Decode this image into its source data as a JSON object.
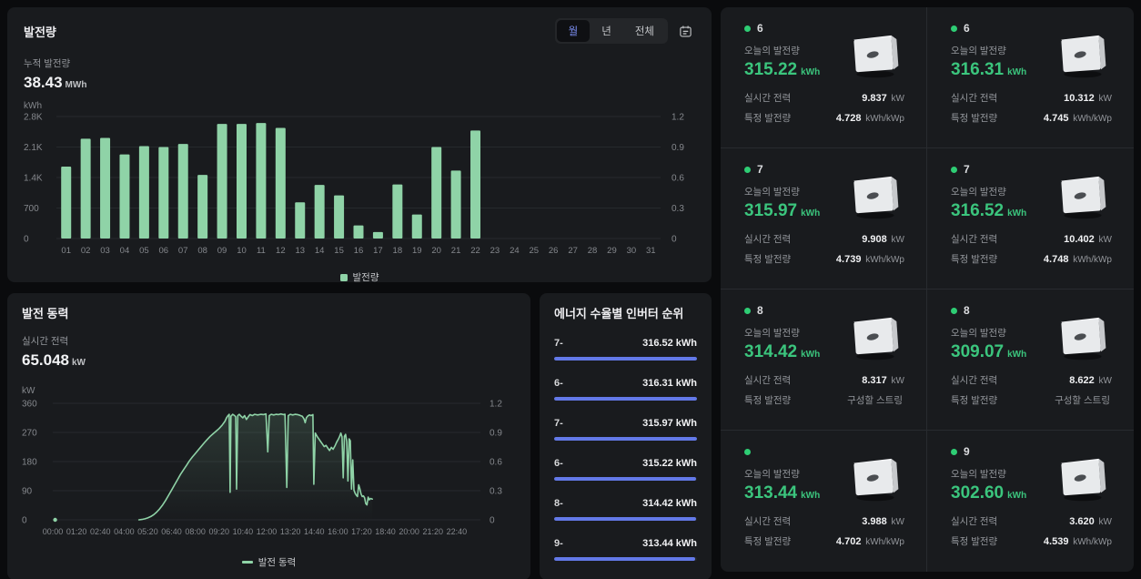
{
  "colors": {
    "background": "#0a0b0d",
    "panel": "#191b1e",
    "grid_line": "#26292d",
    "tick_text": "#85888d",
    "bar_green": "#8fd3a7",
    "value_green": "#3bc57d",
    "accent_blue": "#6379e8",
    "tab_active_blue": "#7e90f6",
    "status_dot_green": "#2ecd74"
  },
  "generation_panel": {
    "title": "발전량",
    "tabs": [
      {
        "label": "월",
        "active": true
      },
      {
        "label": "년",
        "active": false
      },
      {
        "label": "전체",
        "active": false
      }
    ],
    "calendar_icon": "calendar-icon",
    "stat_label": "누적 발전량",
    "stat_value": "38.43",
    "stat_unit": "MWh",
    "axis_unit": "kWh",
    "legend_label": "발전량"
  },
  "power_panel": {
    "title": "발전 동력",
    "stat_label": "실시간 전력",
    "stat_value": "65.048",
    "stat_unit": "kW",
    "axis_unit": "kW",
    "legend_label": "발전 동력"
  },
  "ranking_panel": {
    "title": "에너지 수율별 인버터 순위",
    "items": [
      {
        "name": "7-",
        "value": "316.52 kWh",
        "pct": 100
      },
      {
        "name": "6-",
        "value": "316.31 kWh",
        "pct": 99.9
      },
      {
        "name": "7-",
        "value": "315.97 kWh",
        "pct": 99.8
      },
      {
        "name": "6-",
        "value": "315.22 kWh",
        "pct": 99.6
      },
      {
        "name": "8-",
        "value": "314.42 kWh",
        "pct": 99.3
      },
      {
        "name": "9-",
        "value": "313.44 kWh",
        "pct": 99.0
      }
    ]
  },
  "inverter_cards": {
    "labels": {
      "today": "오늘의 발전량",
      "realtime": "실시간 전력",
      "specific": "특정 발전량"
    },
    "cards": [
      {
        "name": "6",
        "today": "315.22",
        "today_unit": "kWh",
        "realtime": "9.837",
        "realtime_unit": "kW",
        "specific": "4.728",
        "specific_unit": "kWh/kWp"
      },
      {
        "name": "6",
        "today": "316.31",
        "today_unit": "kWh",
        "realtime": "10.312",
        "realtime_unit": "kW",
        "specific": "4.745",
        "specific_unit": "kWh/kWp"
      },
      {
        "name": "7",
        "today": "315.97",
        "today_unit": "kWh",
        "realtime": "9.908",
        "realtime_unit": "kW",
        "specific": "4.739",
        "specific_unit": "kWh/kWp"
      },
      {
        "name": "7",
        "today": "316.52",
        "today_unit": "kWh",
        "realtime": "10.402",
        "realtime_unit": "kW",
        "specific": "4.748",
        "specific_unit": "kWh/kWp"
      },
      {
        "name": "8",
        "today": "314.42",
        "today_unit": "kWh",
        "realtime": "8.317",
        "realtime_unit": "kW",
        "specific": "구성할 스트링",
        "specific_unit": ""
      },
      {
        "name": "8",
        "today": "309.07",
        "today_unit": "kWh",
        "realtime": "8.622",
        "realtime_unit": "kW",
        "specific": "구성할 스트링",
        "specific_unit": ""
      },
      {
        "name": "",
        "today": "313.44",
        "today_unit": "kWh",
        "realtime": "3.988",
        "realtime_unit": "kW",
        "specific": "4.702",
        "specific_unit": "kWh/kWp"
      },
      {
        "name": "9",
        "today": "302.60",
        "today_unit": "kWh",
        "realtime": "3.620",
        "realtime_unit": "kW",
        "specific": "4.539",
        "specific_unit": "kWh/kWp"
      }
    ]
  },
  "chart_data": [
    {
      "type": "bar",
      "title": "발전량 (월)",
      "ylabel": "kWh",
      "categories": [
        "01",
        "02",
        "03",
        "04",
        "05",
        "06",
        "07",
        "08",
        "09",
        "10",
        "11",
        "12",
        "13",
        "14",
        "15",
        "16",
        "17",
        "18",
        "19",
        "20",
        "21",
        "22",
        "23",
        "24",
        "25",
        "26",
        "27",
        "28",
        "29",
        "30",
        "31"
      ],
      "values": [
        1650,
        2290,
        2310,
        1930,
        2120,
        2100,
        2170,
        1460,
        2630,
        2630,
        2650,
        2540,
        830,
        1230,
        990,
        300,
        150,
        1240,
        550,
        2100,
        1560,
        2480,
        0,
        0,
        0,
        0,
        0,
        0,
        0,
        0,
        0
      ],
      "ylim": [
        0,
        2800
      ],
      "yticks": [
        "0",
        "700",
        "1.4K",
        "2.1K",
        "2.8K"
      ],
      "y2lim": [
        0,
        1.2
      ],
      "y2ticks": [
        "0",
        "0.3",
        "0.6",
        "0.9",
        "1.2"
      ],
      "grid": true,
      "legend": [
        "발전량"
      ],
      "legend_position": "bottom",
      "bar_color": "#8fd3a7"
    },
    {
      "type": "line",
      "title": "발전 동력",
      "ylabel": "kW",
      "xticks": [
        "00:00",
        "01:20",
        "02:40",
        "04:00",
        "05:20",
        "06:40",
        "08:00",
        "09:20",
        "10:40",
        "12:00",
        "13:20",
        "14:40",
        "16:00",
        "17:20",
        "18:40",
        "20:00",
        "21:20",
        "22:40"
      ],
      "xlim_minutes": [
        0,
        1440
      ],
      "xtick_step_minutes": 80,
      "ylim": [
        0,
        360
      ],
      "yticks": [
        "0",
        "90",
        "180",
        "270",
        "360"
      ],
      "y2lim": [
        0,
        1.2
      ],
      "y2ticks": [
        "0",
        "0.3",
        "0.6",
        "0.9",
        "1.2"
      ],
      "grid": true,
      "legend": [
        "발전 동력"
      ],
      "legend_position": "bottom",
      "line_color": "#8fd3a7",
      "start_marker_minutes": 8,
      "points_min_kw": [
        [
          290,
          0
        ],
        [
          300,
          1
        ],
        [
          310,
          3
        ],
        [
          320,
          6
        ],
        [
          330,
          10
        ],
        [
          340,
          16
        ],
        [
          350,
          24
        ],
        [
          360,
          34
        ],
        [
          370,
          46
        ],
        [
          380,
          60
        ],
        [
          390,
          76
        ],
        [
          400,
          92
        ],
        [
          410,
          108
        ],
        [
          420,
          124
        ],
        [
          430,
          140
        ],
        [
          440,
          154
        ],
        [
          450,
          168
        ],
        [
          460,
          182
        ],
        [
          470,
          194
        ],
        [
          480,
          205
        ],
        [
          490,
          216
        ],
        [
          500,
          227
        ],
        [
          510,
          238
        ],
        [
          520,
          248
        ],
        [
          530,
          258
        ],
        [
          540,
          266
        ],
        [
          550,
          274
        ],
        [
          560,
          282
        ],
        [
          570,
          292
        ],
        [
          580,
          305
        ],
        [
          585,
          315
        ],
        [
          590,
          322
        ],
        [
          594,
          326
        ],
        [
          597,
          85
        ],
        [
          600,
          320
        ],
        [
          606,
          326
        ],
        [
          612,
          322
        ],
        [
          616,
          318
        ],
        [
          619,
          95
        ],
        [
          623,
          322
        ],
        [
          628,
          326
        ],
        [
          634,
          320
        ],
        [
          640,
          315
        ],
        [
          646,
          322
        ],
        [
          652,
          310
        ],
        [
          658,
          318
        ],
        [
          664,
          325
        ],
        [
          672,
          322
        ],
        [
          680,
          326
        ],
        [
          690,
          324
        ],
        [
          700,
          326
        ],
        [
          710,
          325
        ],
        [
          718,
          327
        ],
        [
          724,
          210
        ],
        [
          729,
          322
        ],
        [
          736,
          326
        ],
        [
          744,
          324
        ],
        [
          752,
          326
        ],
        [
          760,
          325
        ],
        [
          768,
          327
        ],
        [
          776,
          325
        ],
        [
          782,
          326
        ],
        [
          788,
          100
        ],
        [
          793,
          322
        ],
        [
          800,
          326
        ],
        [
          808,
          324
        ],
        [
          816,
          326
        ],
        [
          824,
          325
        ],
        [
          832,
          323
        ],
        [
          840,
          320
        ],
        [
          846,
          312
        ],
        [
          850,
          300
        ],
        [
          854,
          315
        ],
        [
          858,
          320
        ],
        [
          864,
          324
        ],
        [
          870,
          322
        ],
        [
          876,
          325
        ],
        [
          879,
          110
        ],
        [
          884,
          268
        ],
        [
          890,
          258
        ],
        [
          896,
          250
        ],
        [
          902,
          242
        ],
        [
          908,
          234
        ],
        [
          914,
          226
        ],
        [
          920,
          230
        ],
        [
          926,
          222
        ],
        [
          932,
          214
        ],
        [
          938,
          224
        ],
        [
          944,
          218
        ],
        [
          950,
          228
        ],
        [
          956,
          240
        ],
        [
          962,
          250
        ],
        [
          966,
          258
        ],
        [
          970,
          268
        ],
        [
          974,
          256
        ],
        [
          978,
          130
        ],
        [
          982,
          258
        ],
        [
          986,
          264
        ],
        [
          990,
          242
        ],
        [
          994,
          120
        ],
        [
          998,
          250
        ],
        [
          1002,
          244
        ],
        [
          1006,
          95
        ],
        [
          1010,
          185
        ],
        [
          1014,
          92
        ],
        [
          1018,
          82
        ],
        [
          1022,
          76
        ],
        [
          1026,
          72
        ],
        [
          1030,
          108
        ],
        [
          1034,
          96
        ],
        [
          1038,
          80
        ],
        [
          1042,
          72
        ],
        [
          1046,
          74
        ],
        [
          1050,
          68
        ],
        [
          1054,
          50
        ],
        [
          1058,
          46
        ],
        [
          1062,
          70
        ],
        [
          1066,
          62
        ],
        [
          1070,
          66
        ],
        [
          1076,
          64
        ]
      ]
    }
  ]
}
